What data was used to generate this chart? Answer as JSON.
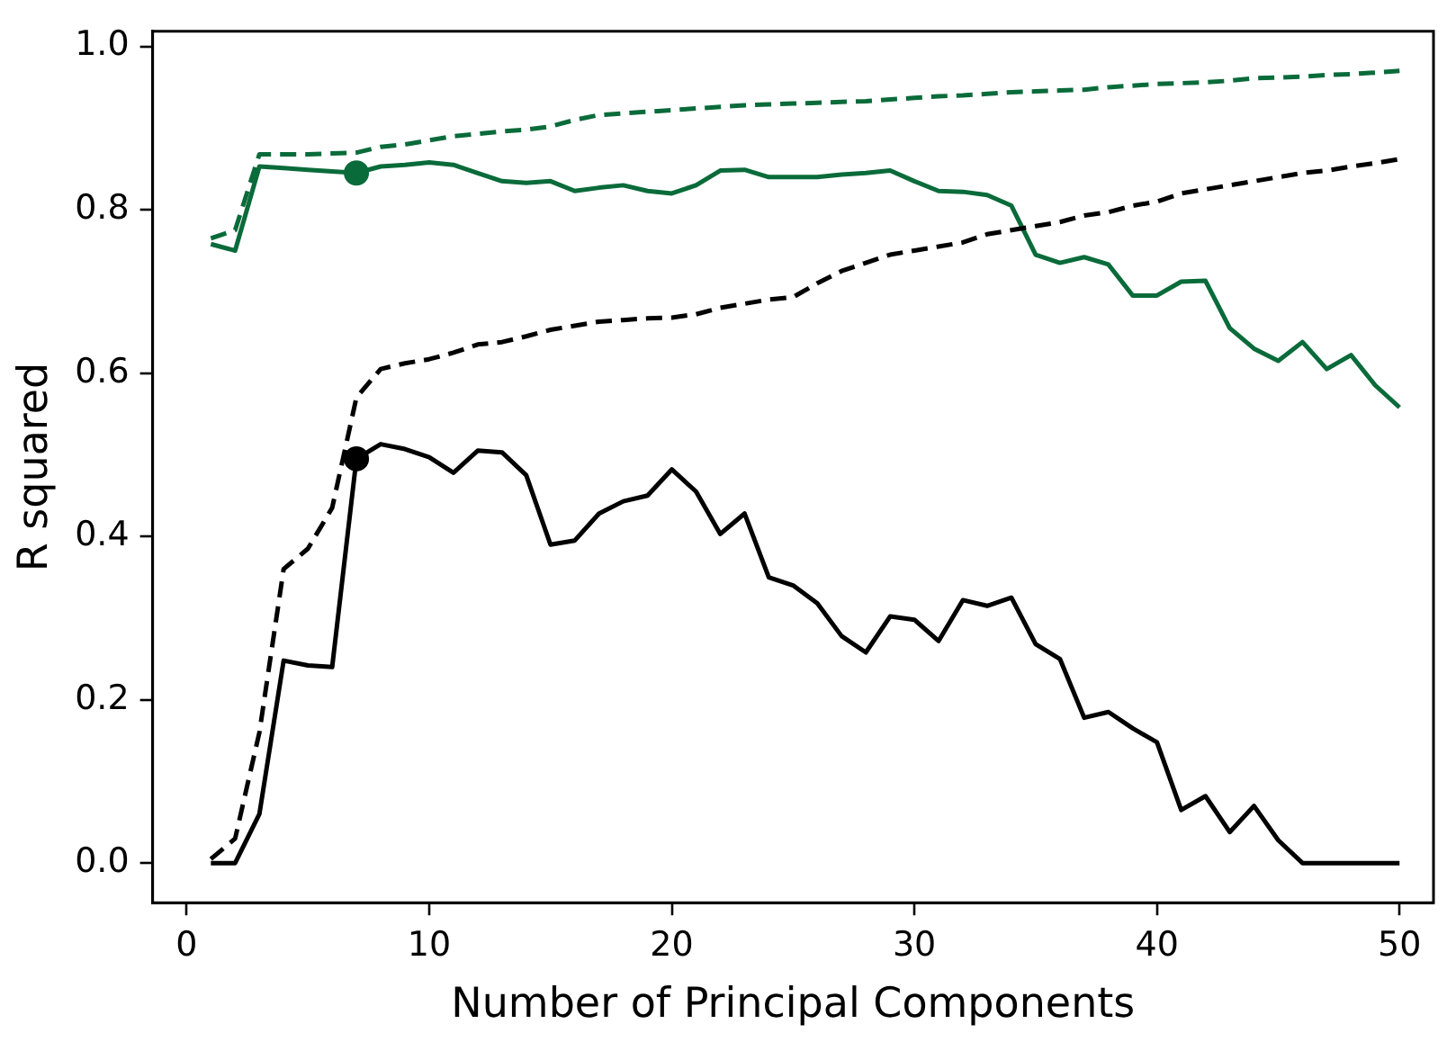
{
  "chart_data": {
    "type": "line",
    "xlabel": "Number of Principal Components",
    "ylabel": "R squared",
    "x": [
      1,
      2,
      3,
      4,
      5,
      6,
      7,
      8,
      9,
      10,
      11,
      12,
      13,
      14,
      15,
      16,
      17,
      18,
      19,
      20,
      21,
      22,
      23,
      24,
      25,
      26,
      27,
      28,
      29,
      30,
      31,
      32,
      33,
      34,
      35,
      36,
      37,
      38,
      39,
      40,
      41,
      42,
      43,
      44,
      45,
      46,
      47,
      48,
      49,
      50
    ],
    "xlim": [
      -1.4,
      51.4
    ],
    "xticks": [
      0,
      10,
      20,
      30,
      40,
      50
    ],
    "ylim": [
      -0.0485,
      1.0185
    ],
    "yticks": [
      {
        "value": 0,
        "label": "0.0"
      },
      {
        "value": 0.2,
        "label": "0.2"
      },
      {
        "value": 0.4,
        "label": "0.4"
      },
      {
        "value": 0.6,
        "label": "0.6"
      },
      {
        "value": 0.8,
        "label": "0.8"
      },
      {
        "value": 1,
        "label": "1.0"
      }
    ],
    "grid": false,
    "legend": false,
    "marker": "none",
    "series": [
      {
        "color": "#000000",
        "line_style": "solid",
        "values": [
          0,
          0,
          0.06,
          0.248,
          0.242,
          0.24,
          0.495,
          0.513,
          0.507,
          0.497,
          0.478,
          0.505,
          0.503,
          0.475,
          0.39,
          0.395,
          0.428,
          0.443,
          0.45,
          0.482,
          0.455,
          0.403,
          0.428,
          0.35,
          0.34,
          0.318,
          0.278,
          0.258,
          0.302,
          0.298,
          0.272,
          0.322,
          0.315,
          0.325,
          0.268,
          0.25,
          0.178,
          0.185,
          0.165,
          0.148,
          0.065,
          0.082,
          0.038,
          0.07,
          0.028,
          0,
          0,
          0,
          0,
          0
        ]
      },
      {
        "color": "#000000",
        "line_style": "dashed",
        "values": [
          0.005,
          0.03,
          0.16,
          0.36,
          0.385,
          0.435,
          0.57,
          0.605,
          0.612,
          0.617,
          0.625,
          0.635,
          0.638,
          0.645,
          0.653,
          0.658,
          0.663,
          0.665,
          0.667,
          0.668,
          0.672,
          0.68,
          0.685,
          0.69,
          0.693,
          0.71,
          0.725,
          0.735,
          0.745,
          0.75,
          0.755,
          0.76,
          0.77,
          0.775,
          0.78,
          0.785,
          0.793,
          0.797,
          0.805,
          0.81,
          0.82,
          0.825,
          0.83,
          0.835,
          0.84,
          0.845,
          0.848,
          0.853,
          0.857,
          0.862
        ]
      },
      {
        "color": "#0a6b3a",
        "line_style": "solid",
        "values": [
          0.758,
          0.75,
          0.853,
          0.851,
          0.849,
          0.847,
          0.845,
          0.853,
          0.855,
          0.858,
          0.855,
          0.845,
          0.835,
          0.833,
          0.835,
          0.823,
          0.827,
          0.83,
          0.823,
          0.82,
          0.83,
          0.848,
          0.849,
          0.84,
          0.84,
          0.84,
          0.843,
          0.845,
          0.848,
          0.835,
          0.823,
          0.822,
          0.818,
          0.805,
          0.745,
          0.735,
          0.742,
          0.733,
          0.695,
          0.695,
          0.712,
          0.713,
          0.655,
          0.63,
          0.615,
          0.638,
          0.605,
          0.622,
          0.585,
          0.558
        ]
      },
      {
        "color": "#0a6b3a",
        "line_style": "dashed",
        "values": [
          0.765,
          0.775,
          0.868,
          0.868,
          0.868,
          0.869,
          0.87,
          0.877,
          0.88,
          0.885,
          0.89,
          0.893,
          0.896,
          0.898,
          0.902,
          0.91,
          0.916,
          0.918,
          0.92,
          0.922,
          0.924,
          0.926,
          0.928,
          0.929,
          0.93,
          0.931,
          0.932,
          0.933,
          0.935,
          0.937,
          0.939,
          0.94,
          0.942,
          0.944,
          0.945,
          0.946,
          0.947,
          0.95,
          0.952,
          0.954,
          0.955,
          0.956,
          0.958,
          0.961,
          0.962,
          0.963,
          0.965,
          0.966,
          0.968,
          0.97
        ]
      },
      {
        "type": "scatter",
        "marker": "circle",
        "color": "#000000",
        "x": [
          7
        ],
        "values": [
          0.495
        ]
      },
      {
        "type": "scatter",
        "marker": "circle",
        "color": "#0a6b3a",
        "x": [
          7
        ],
        "values": [
          0.845
        ]
      }
    ]
  }
}
